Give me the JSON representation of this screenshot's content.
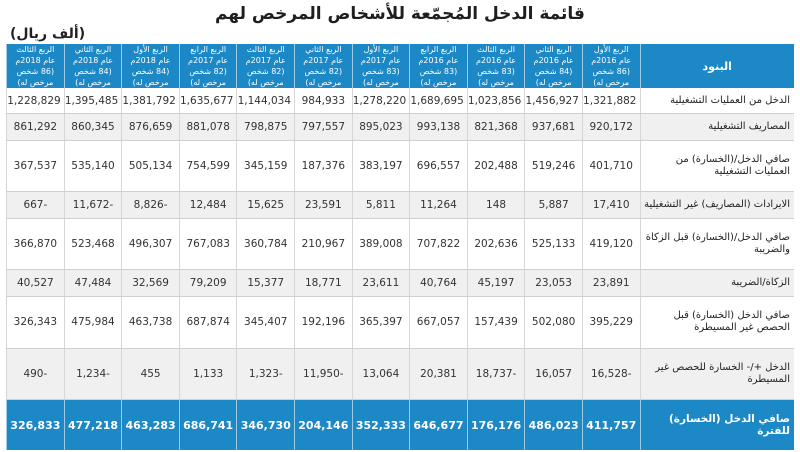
{
  "title": "قائمة الدخل المُجمّعة للأشخاص المرخص لهم",
  "unit": "(ألف ريال)",
  "header": {
    "item_label": "البنود",
    "columns": [
      {
        "quarter": "الربع الأول",
        "year": "عام 2016م",
        "count": "(86 شخص مرخص له)"
      },
      {
        "quarter": "الربع الثاني",
        "year": "عام 2016م",
        "count": "(84 شخص مرخص له)"
      },
      {
        "quarter": "الربع الثالث",
        "year": "عام 2016م",
        "count": "(83 شخص مرخص له)"
      },
      {
        "quarter": "الربع الرابع",
        "year": "عام 2016م",
        "count": "(83 شخص مرخص له)"
      },
      {
        "quarter": "الربع الأول",
        "year": "عام 2017م",
        "count": "(83 شخص مرخص له)"
      },
      {
        "quarter": "الربع الثاني",
        "year": "عام 2017م",
        "count": "(82 شخص مرخص له)"
      },
      {
        "quarter": "الربع الثالث",
        "year": "عام 2017م",
        "count": "(82 شخص مرخص له)"
      },
      {
        "quarter": "الربع الرابع",
        "year": "عام 2017م",
        "count": "(82 شخص مرخص له)"
      },
      {
        "quarter": "الربع الأول",
        "year": "عام 2018م",
        "count": "(84 شخص مرخص له)"
      },
      {
        "quarter": "الربع الثاني",
        "year": "عام 2018م",
        "count": "(84 شخص مرخص له)"
      },
      {
        "quarter": "الربع الثالث",
        "year": "عام 2018م",
        "count": "(86 شخص مرخص له)"
      }
    ]
  },
  "rows": [
    {
      "label": "الدخل من العمليات التشغيلية",
      "values": [
        "1,321,882",
        "1,456,927",
        "1,023,856",
        "1,689,695",
        "1,278,220",
        "984,933",
        "1,144,034",
        "1,635,677",
        "1,381,792",
        "1,395,485",
        "1,228,829"
      ]
    },
    {
      "label": "المصاريف التشغيلية",
      "values": [
        "920,172",
        "937,681",
        "821,368",
        "993,138",
        "895,023",
        "797,557",
        "798,875",
        "881,078",
        "876,659",
        "860,345",
        "861,292"
      ]
    },
    {
      "label": "صافي الدخل/(الخسارة) من العمليات التشغيلية",
      "values": [
        "401,710",
        "519,246",
        "202,488",
        "696,557",
        "383,197",
        "187,376",
        "345,159",
        "754,599",
        "505,134",
        "535,140",
        "367,537"
      ]
    },
    {
      "label": "الايرادات (المصاريف) غير التشغيلية",
      "values": [
        "17,410",
        "5,887",
        "148",
        "11,264",
        "5,811",
        "23,591",
        "15,625",
        "12,484",
        "-8,826",
        "-11,672",
        "-667"
      ]
    },
    {
      "label": "صافي الدخل/(الخسارة) قبل الزكاة والضريبة",
      "values": [
        "419,120",
        "525,133",
        "202,636",
        "707,822",
        "389,008",
        "210,967",
        "360,784",
        "767,083",
        "496,307",
        "523,468",
        "366,870"
      ]
    },
    {
      "label": "الزكاة/الضريبة",
      "values": [
        "23,891",
        "23,053",
        "45,197",
        "40,764",
        "23,611",
        "18,771",
        "15,377",
        "79,209",
        "32,569",
        "47,484",
        "40,527"
      ]
    },
    {
      "label": "صافي الدخل (الخسارة) قبل الحصص غير المسيطرة",
      "values": [
        "395,229",
        "502,080",
        "157,439",
        "667,057",
        "365,397",
        "192,196",
        "345,407",
        "687,874",
        "463,738",
        "475,984",
        "326,343"
      ]
    },
    {
      "label": "الدخل +/- الخسارة للحصص غير المسيطرة",
      "values": [
        "-16,528",
        "16,057",
        "-18,737",
        "20,381",
        "13,064",
        "-11,950",
        "-1,323",
        "1,133",
        "455",
        "-1,234",
        "-490"
      ]
    }
  ],
  "total": {
    "label": "صافي الدخل (الخسارة) للفترة",
    "values": [
      "411,757",
      "486,023",
      "176,176",
      "646,677",
      "352,333",
      "204,146",
      "346,730",
      "686,741",
      "463,283",
      "477,218",
      "326,833"
    ]
  },
  "colors": {
    "header_bg": "#1d88c6",
    "alt_row": "#f0f0f0"
  }
}
